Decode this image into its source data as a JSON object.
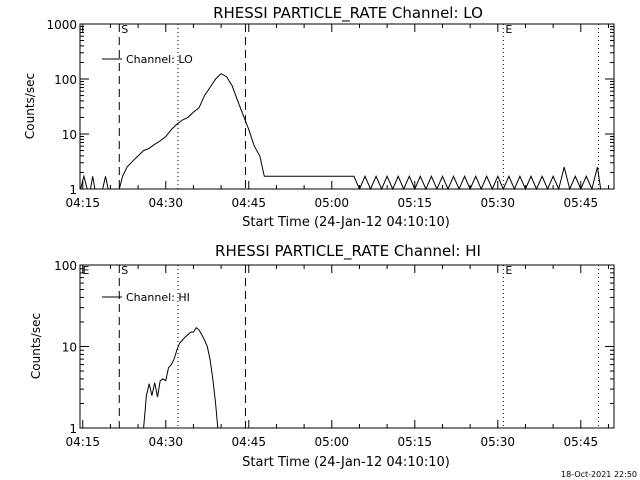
{
  "chart_data": [
    {
      "type": "line",
      "title": "RHESSI PARTICLE_RATE Channel: LO",
      "xlabel": "Start Time (24-Jan-12 04:10:10)",
      "ylabel": "Counts/sec",
      "yscale": "log",
      "ylim": [
        1,
        1000
      ],
      "xlim_minutes": [
        4.5,
        101
      ],
      "x_ticks": [
        "04:15",
        "04:30",
        "04:45",
        "05:00",
        "05:15",
        "05:30",
        "05:45"
      ],
      "y_ticks": [
        "1",
        "10",
        "100",
        "1000"
      ],
      "legend": "Channel: LO",
      "legend_position": "top-left",
      "markers": [
        {
          "label": "S",
          "minute": 11.6,
          "style": "dashed"
        },
        {
          "label": "",
          "minute": 22.2,
          "style": "dotted"
        },
        {
          "label": "",
          "minute": 34.4,
          "style": "dashed"
        },
        {
          "label": "E",
          "minute": 81.0,
          "style": "dotted"
        },
        {
          "label": "",
          "minute": 98.2,
          "style": "dotted"
        }
      ],
      "series": [
        {
          "name": "Channel: LO",
          "points": [
            [
              4.6,
              1
            ],
            [
              5.2,
              1.7
            ],
            [
              5.8,
              1
            ],
            [
              6.4,
              1
            ],
            [
              6.8,
              1.7
            ],
            [
              7.2,
              1
            ],
            [
              8.6,
              1
            ],
            [
              9.1,
              1.7
            ],
            [
              9.6,
              1
            ],
            [
              10.6,
              1
            ],
            [
              11.6,
              1
            ],
            [
              12.2,
              1.7
            ],
            [
              13.0,
              2.5
            ],
            [
              14.0,
              3.2
            ],
            [
              15.0,
              4
            ],
            [
              16.0,
              5
            ],
            [
              17.0,
              5.5
            ],
            [
              18.0,
              6.5
            ],
            [
              19.0,
              7.5
            ],
            [
              20.0,
              9
            ],
            [
              21.0,
              12
            ],
            [
              22.0,
              15
            ],
            [
              23.0,
              18
            ],
            [
              24.0,
              20
            ],
            [
              25.0,
              25
            ],
            [
              26.0,
              30
            ],
            [
              27.0,
              50
            ],
            [
              28.0,
              70
            ],
            [
              29.0,
              100
            ],
            [
              30.0,
              125
            ],
            [
              31.0,
              110
            ],
            [
              32.0,
              75
            ],
            [
              33.0,
              40
            ],
            [
              34.0,
              22
            ],
            [
              35.0,
              12
            ],
            [
              36.0,
              6
            ],
            [
              37.0,
              4
            ],
            [
              37.8,
              1.7
            ],
            [
              38.5,
              1.7
            ],
            [
              45.0,
              1.7
            ],
            [
              50.0,
              1.7
            ],
            [
              54.0,
              1.7
            ],
            [
              55.0,
              1
            ],
            [
              56.0,
              1.7
            ],
            [
              57.0,
              1
            ],
            [
              58.0,
              1.7
            ],
            [
              59.0,
              1
            ],
            [
              60.0,
              1.7
            ],
            [
              61.0,
              1
            ],
            [
              62.0,
              1.7
            ],
            [
              63.0,
              1
            ],
            [
              64.0,
              1.7
            ],
            [
              65.0,
              1
            ],
            [
              66.0,
              1.7
            ],
            [
              67.0,
              1
            ],
            [
              68.0,
              1.7
            ],
            [
              69.0,
              1
            ],
            [
              70.0,
              1.7
            ],
            [
              71.0,
              1
            ],
            [
              72.0,
              1.7
            ],
            [
              73.0,
              1
            ],
            [
              74.0,
              1.7
            ],
            [
              75.0,
              1
            ],
            [
              76.0,
              1.7
            ],
            [
              77.0,
              1
            ],
            [
              78.0,
              1.7
            ],
            [
              79.0,
              1
            ],
            [
              80.0,
              1.7
            ],
            [
              81.0,
              1
            ],
            [
              82.0,
              1.7
            ],
            [
              83.0,
              1
            ],
            [
              84.0,
              1.7
            ],
            [
              85.0,
              1
            ],
            [
              86.0,
              1.7
            ],
            [
              87.0,
              1
            ],
            [
              88.0,
              1.7
            ],
            [
              89.0,
              1
            ],
            [
              90.0,
              1.7
            ],
            [
              91.0,
              1
            ],
            [
              92.0,
              2.5
            ],
            [
              93.0,
              1
            ],
            [
              94.0,
              1.7
            ],
            [
              95.0,
              1
            ],
            [
              96.0,
              1.7
            ],
            [
              97.0,
              1
            ],
            [
              98.0,
              2.5
            ],
            [
              98.6,
              1
            ]
          ]
        }
      ]
    },
    {
      "type": "line",
      "title": "RHESSI PARTICLE_RATE Channel: HI",
      "xlabel": "Start Time (24-Jan-12 04:10:10)",
      "ylabel": "Counts/sec",
      "yscale": "log",
      "ylim": [
        1,
        100
      ],
      "xlim_minutes": [
        4.5,
        101
      ],
      "x_ticks": [
        "04:15",
        "04:30",
        "04:45",
        "05:00",
        "05:15",
        "05:30",
        "05:45"
      ],
      "y_ticks": [
        "1",
        "10",
        "100"
      ],
      "legend": "Channel: HI",
      "legend_position": "top-left",
      "markers": [
        {
          "label": "E",
          "minute": 4.6,
          "style": "none"
        },
        {
          "label": "S",
          "minute": 11.6,
          "style": "dashed"
        },
        {
          "label": "",
          "minute": 22.2,
          "style": "dotted"
        },
        {
          "label": "",
          "minute": 34.4,
          "style": "dashed"
        },
        {
          "label": "E",
          "minute": 81.0,
          "style": "dotted"
        },
        {
          "label": "",
          "minute": 98.2,
          "style": "dotted"
        }
      ],
      "series": [
        {
          "name": "Channel: HI",
          "points": [
            [
              16.0,
              1
            ],
            [
              16.5,
              2.5
            ],
            [
              17.0,
              3.5
            ],
            [
              17.5,
              2.5
            ],
            [
              18.0,
              3.6
            ],
            [
              18.5,
              2.4
            ],
            [
              19.0,
              3.8
            ],
            [
              19.5,
              4
            ],
            [
              20.0,
              3.8
            ],
            [
              20.5,
              5.5
            ],
            [
              21.0,
              6
            ],
            [
              21.5,
              7
            ],
            [
              22.0,
              9
            ],
            [
              22.5,
              11
            ],
            [
              23.0,
              12
            ],
            [
              23.5,
              13
            ],
            [
              24.0,
              14
            ],
            [
              24.5,
              15
            ],
            [
              25.0,
              15
            ],
            [
              25.5,
              17
            ],
            [
              26.0,
              16
            ],
            [
              26.5,
              14
            ],
            [
              27.0,
              12
            ],
            [
              27.5,
              10
            ],
            [
              28.0,
              7
            ],
            [
              28.5,
              4
            ],
            [
              29.0,
              2
            ],
            [
              29.4,
              1
            ]
          ]
        }
      ]
    }
  ],
  "footer": {
    "timestamp": "18-Oct-2021 22:50"
  }
}
